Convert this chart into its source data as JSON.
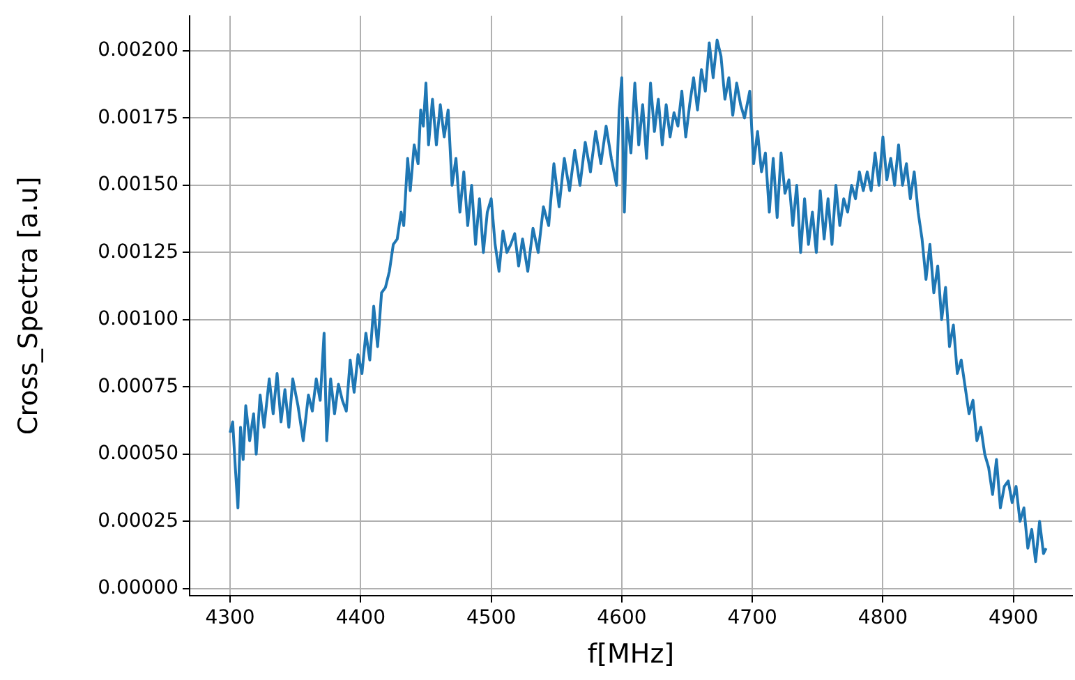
{
  "chart_data": {
    "type": "line",
    "xlabel": "f[MHz]",
    "ylabel": "Cross_Spectra [a.u]",
    "grid": true,
    "legend": false,
    "marker": "none",
    "line_style": "solid",
    "xlim": [
      4269,
      4945
    ],
    "xticks": [
      4300,
      4400,
      4500,
      4600,
      4700,
      4800,
      4900
    ],
    "ylim": [
      -2.6e-05,
      0.00213
    ],
    "yticks": [
      {
        "value": 0,
        "label": "0.00000"
      },
      {
        "value": 0.00025,
        "label": "0.00025"
      },
      {
        "value": 0.0005,
        "label": "0.00050"
      },
      {
        "value": 0.00075,
        "label": "0.00075"
      },
      {
        "value": 0.001,
        "label": "0.00100"
      },
      {
        "value": 0.00125,
        "label": "0.00125"
      },
      {
        "value": 0.0015,
        "label": "0.00150"
      },
      {
        "value": 0.00175,
        "label": "0.00175"
      },
      {
        "value": 0.002,
        "label": "0.00200"
      }
    ],
    "series": [
      {
        "color": "#1f77b4",
        "x": [
          4300,
          4302,
          4304,
          4306,
          4308,
          4310,
          4312,
          4315,
          4318,
          4320,
          4323,
          4326,
          4330,
          4333,
          4336,
          4339,
          4342,
          4345,
          4348,
          4352,
          4356,
          4360,
          4363,
          4366,
          4369,
          4372,
          4374,
          4377,
          4380,
          4383,
          4386,
          4389,
          4392,
          4395,
          4398,
          4401,
          4404,
          4407,
          4410,
          4413,
          4416,
          4419,
          4422,
          4425,
          4428,
          4431,
          4433,
          4436,
          4438,
          4441,
          4444,
          4446,
          4448,
          4450,
          4452,
          4455,
          4458,
          4461,
          4464,
          4467,
          4470,
          4473,
          4476,
          4479,
          4482,
          4485,
          4488,
          4491,
          4494,
          4497,
          4500,
          4503,
          4506,
          4509,
          4512,
          4515,
          4518,
          4521,
          4524,
          4528,
          4532,
          4536,
          4540,
          4544,
          4548,
          4552,
          4556,
          4560,
          4564,
          4568,
          4572,
          4576,
          4580,
          4584,
          4588,
          4592,
          4596,
          4598,
          4600,
          4602,
          4604,
          4607,
          4610,
          4613,
          4616,
          4619,
          4622,
          4625,
          4628,
          4631,
          4634,
          4637,
          4640,
          4643,
          4646,
          4649,
          4652,
          4655,
          4658,
          4661,
          4664,
          4667,
          4670,
          4673,
          4676,
          4679,
          4682,
          4685,
          4688,
          4691,
          4694,
          4698,
          4701,
          4704,
          4707,
          4710,
          4713,
          4716,
          4719,
          4722,
          4725,
          4728,
          4731,
          4734,
          4737,
          4740,
          4743,
          4746,
          4749,
          4752,
          4755,
          4758,
          4761,
          4764,
          4767,
          4770,
          4773,
          4776,
          4779,
          4782,
          4785,
          4788,
          4791,
          4794,
          4797,
          4800,
          4803,
          4806,
          4809,
          4812,
          4815,
          4818,
          4821,
          4824,
          4827,
          4830,
          4833,
          4836,
          4839,
          4842,
          4845,
          4848,
          4851,
          4854,
          4857,
          4860,
          4863,
          4866,
          4869,
          4872,
          4875,
          4878,
          4881,
          4884,
          4887,
          4890,
          4893,
          4896,
          4899,
          4902,
          4905,
          4908,
          4911,
          4914,
          4917,
          4920,
          4923,
          4925
        ],
        "values": [
          0.00058,
          0.00062,
          0.00045,
          0.0003,
          0.0006,
          0.00048,
          0.00068,
          0.00055,
          0.00065,
          0.0005,
          0.00072,
          0.0006,
          0.00078,
          0.00065,
          0.0008,
          0.00062,
          0.00074,
          0.0006,
          0.00078,
          0.00068,
          0.00055,
          0.00072,
          0.00066,
          0.00078,
          0.0007,
          0.00095,
          0.00055,
          0.00078,
          0.00065,
          0.00076,
          0.0007,
          0.00066,
          0.00085,
          0.00073,
          0.00087,
          0.0008,
          0.00095,
          0.00085,
          0.00105,
          0.0009,
          0.0011,
          0.00112,
          0.00118,
          0.00128,
          0.0013,
          0.0014,
          0.00135,
          0.0016,
          0.00148,
          0.00165,
          0.00158,
          0.00178,
          0.00172,
          0.00188,
          0.00165,
          0.00182,
          0.00165,
          0.0018,
          0.00168,
          0.00178,
          0.0015,
          0.0016,
          0.0014,
          0.00155,
          0.00135,
          0.0015,
          0.00128,
          0.00145,
          0.00125,
          0.0014,
          0.00145,
          0.00128,
          0.00118,
          0.00133,
          0.00125,
          0.00128,
          0.00132,
          0.0012,
          0.0013,
          0.00118,
          0.00134,
          0.00125,
          0.00142,
          0.00135,
          0.00158,
          0.00142,
          0.0016,
          0.00148,
          0.00163,
          0.0015,
          0.00166,
          0.00155,
          0.0017,
          0.00158,
          0.00172,
          0.0016,
          0.0015,
          0.00178,
          0.0019,
          0.0014,
          0.00175,
          0.00162,
          0.00188,
          0.00165,
          0.0018,
          0.0016,
          0.00188,
          0.0017,
          0.00182,
          0.00165,
          0.0018,
          0.00168,
          0.00177,
          0.00172,
          0.00185,
          0.00168,
          0.0018,
          0.0019,
          0.00178,
          0.00193,
          0.00185,
          0.00203,
          0.0019,
          0.00204,
          0.00198,
          0.00182,
          0.0019,
          0.00176,
          0.00188,
          0.0018,
          0.00175,
          0.00185,
          0.00158,
          0.0017,
          0.00155,
          0.00162,
          0.0014,
          0.0016,
          0.00138,
          0.00162,
          0.00147,
          0.00152,
          0.00135,
          0.0015,
          0.00125,
          0.00145,
          0.00128,
          0.0014,
          0.00125,
          0.00148,
          0.0013,
          0.00145,
          0.00128,
          0.0015,
          0.00135,
          0.00145,
          0.0014,
          0.0015,
          0.00145,
          0.00155,
          0.00148,
          0.00155,
          0.00148,
          0.00162,
          0.0015,
          0.00168,
          0.00152,
          0.0016,
          0.0015,
          0.00165,
          0.0015,
          0.00158,
          0.00145,
          0.00155,
          0.0014,
          0.0013,
          0.00115,
          0.00128,
          0.0011,
          0.0012,
          0.001,
          0.00112,
          0.0009,
          0.00098,
          0.0008,
          0.00085,
          0.00075,
          0.00065,
          0.0007,
          0.00055,
          0.0006,
          0.0005,
          0.00045,
          0.00035,
          0.00048,
          0.0003,
          0.00038,
          0.0004,
          0.00032,
          0.00038,
          0.00025,
          0.0003,
          0.00015,
          0.00022,
          0.0001,
          0.00025,
          0.00013,
          0.00015
        ]
      }
    ]
  }
}
